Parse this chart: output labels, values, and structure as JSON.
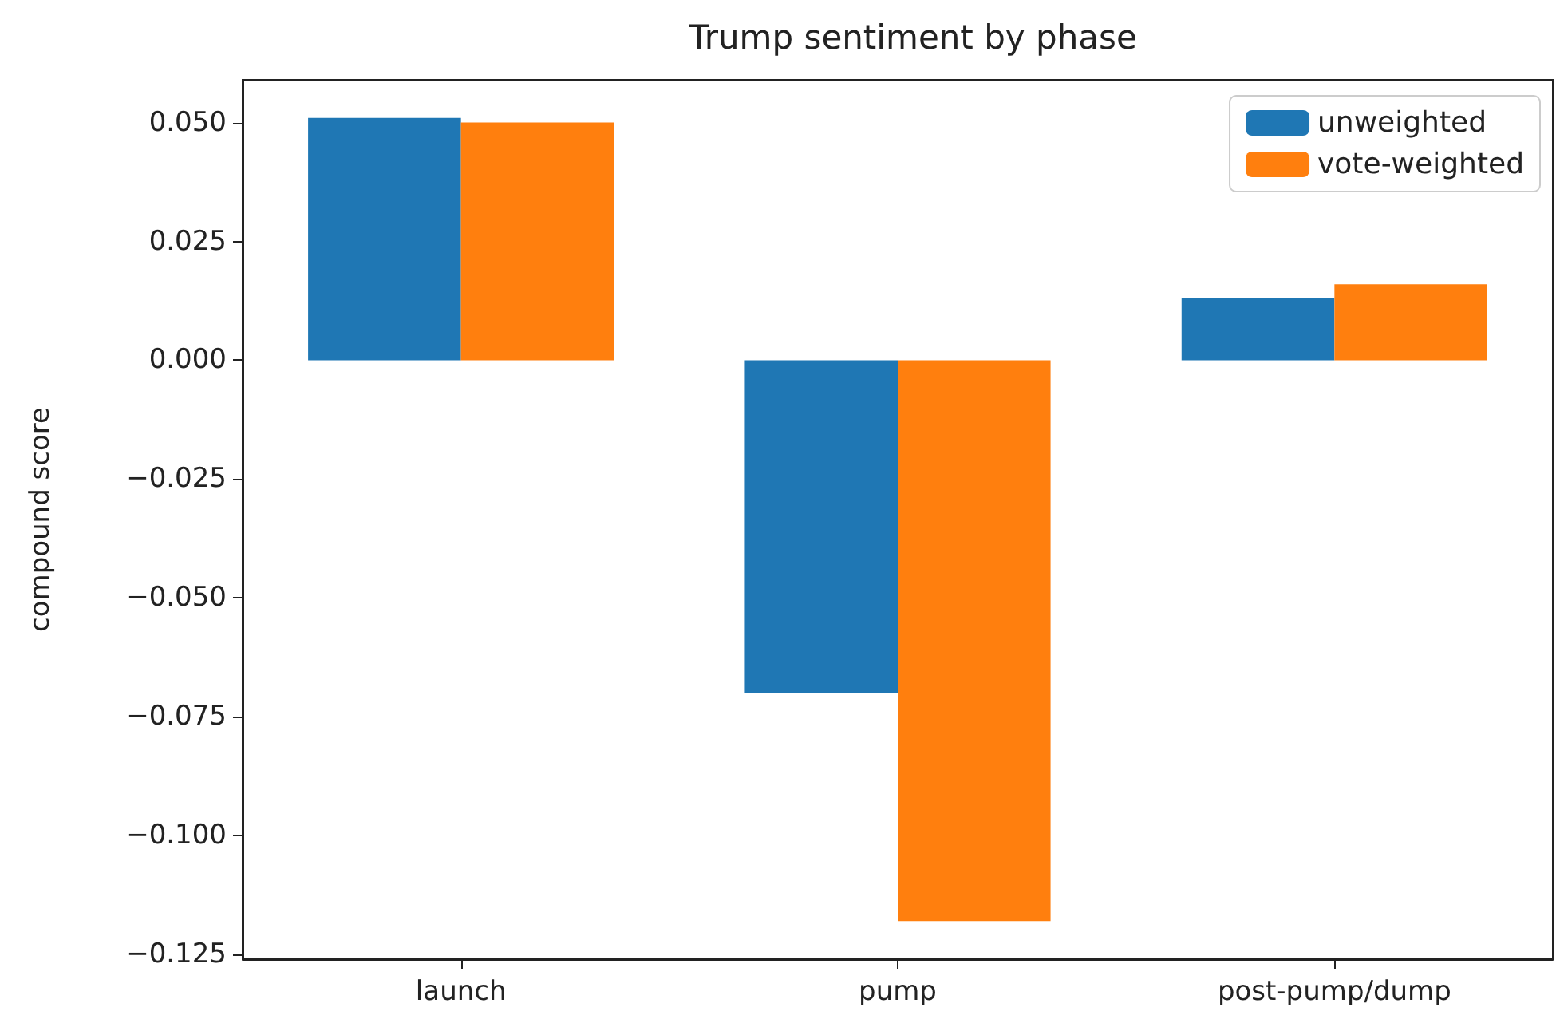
{
  "chart_data": {
    "type": "bar",
    "title": "Trump sentiment by phase",
    "ylabel": "compound score",
    "categories": [
      "launch",
      "pump",
      "post-pump/dump"
    ],
    "series": [
      {
        "name": "unweighted",
        "color": "#1f77b4",
        "values": [
          0.051,
          -0.07,
          0.013
        ]
      },
      {
        "name": "vote-weighted",
        "color": "#ff7f0e",
        "values": [
          0.05,
          -0.118,
          0.016
        ]
      }
    ],
    "ylim": [
      -0.126,
      0.059
    ],
    "yticks": [
      {
        "value": -0.125,
        "label": "−0.125"
      },
      {
        "value": -0.1,
        "label": "−0.100"
      },
      {
        "value": -0.075,
        "label": "−0.075"
      },
      {
        "value": -0.05,
        "label": "−0.050"
      },
      {
        "value": -0.025,
        "label": "−0.025"
      },
      {
        "value": 0,
        "label": "0.000"
      },
      {
        "value": 0.025,
        "label": "0.025"
      },
      {
        "value": 0.05,
        "label": "0.050"
      }
    ],
    "grid": false,
    "legend": "top right"
  }
}
